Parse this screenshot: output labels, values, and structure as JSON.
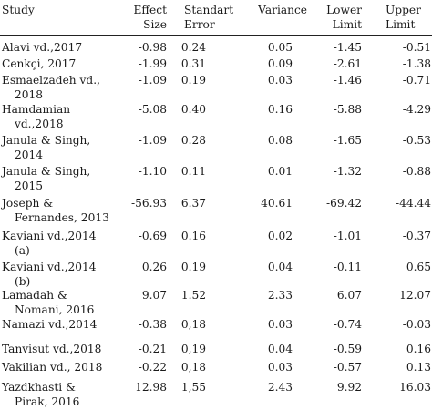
{
  "table": {
    "headers": {
      "study": "Study",
      "effect_1": "Effect",
      "effect_2": "Size",
      "se_1": "Standart",
      "se_2": "Error",
      "variance": "Variance",
      "lower_1": "Lower",
      "lower_2": "Limit",
      "upper_1": "Upper",
      "upper_2": "Limit"
    },
    "rows": [
      {
        "study_1": "Alavi vd.,2017",
        "study_2": "",
        "effect": "-0.98",
        "se": "0.24",
        "variance": "0.05",
        "lower": "-1.45",
        "upper": "-0.51"
      },
      {
        "study_1": "Cenkçi, 2017",
        "study_2": "",
        "effect": "-1.99",
        "se": "0.31",
        "variance": "0.09",
        "lower": "-2.61",
        "upper": "-1.38"
      },
      {
        "study_1": "Esmaelzadeh vd.,",
        "study_2": "2018",
        "effect": "-1.09",
        "se": "0.19",
        "variance": "0.03",
        "lower": "-1.46",
        "upper": "-0.71"
      },
      {
        "study_1": "Hamdamian",
        "study_2": "vd.,2018",
        "effect": "-5.08",
        "se": "0.40",
        "variance": "0.16",
        "lower": "-5.88",
        "upper": "-4.29"
      },
      {
        "study_1": "Janula & Singh,",
        "study_2": "2014",
        "effect": "-1.09",
        "se": "0.28",
        "variance": "0.08",
        "lower": "-1.65",
        "upper": "-0.53"
      },
      {
        "study_1": "Janula & Singh,",
        "study_2": "2015",
        "effect": "-1.10",
        "se": "0.11",
        "variance": "0.01",
        "lower": "-1.32",
        "upper": "-0.88"
      },
      {
        "study_1": "Joseph &",
        "study_2": "Fernandes, 2013",
        "effect": "-56.93",
        "se": "6.37",
        "variance": "40.61",
        "lower": "-69.42",
        "upper": "-44.44"
      },
      {
        "study_1": "Kaviani vd.,2014",
        "study_2": "(a)",
        "effect": "-0.69",
        "se": "0.16",
        "variance": "0.02",
        "lower": "-1.01",
        "upper": "-0.37"
      },
      {
        "study_1": "Kaviani vd.,2014",
        "study_2": "(b)",
        "effect": "0.26",
        "se": "0.19",
        "variance": "0.04",
        "lower": "-0.11",
        "upper": "0.65"
      },
      {
        "study_1": "Lamadah &",
        "study_2": "Nomani, 2016",
        "effect": "9.07",
        "se": "1.52",
        "variance": "2.33",
        "lower": "6.07",
        "upper": "12.07"
      },
      {
        "study_1": "Namazi vd.,2014",
        "study_2": "",
        "effect": "-0.38",
        "se": "0,18",
        "variance": "0.03",
        "lower": "-0.74",
        "upper": "-0.03"
      },
      {
        "study_1": "Tanvisut vd.,2018",
        "study_2": "",
        "effect": "-0.21",
        "se": "0,19",
        "variance": "0.04",
        "lower": "-0.59",
        "upper": "0.16"
      },
      {
        "study_1": "Vakilian vd., 2018",
        "study_2": "",
        "effect": "-0.22",
        "se": "0,18",
        "variance": "0.03",
        "lower": "-0.57",
        "upper": "0.13"
      },
      {
        "study_1": "Yazdkhasti &",
        "study_2": "Pirak, 2016",
        "effect": "12.98",
        "se": "1,55",
        "variance": "2.43",
        "lower": "9.92",
        "upper": "16.03"
      }
    ]
  }
}
